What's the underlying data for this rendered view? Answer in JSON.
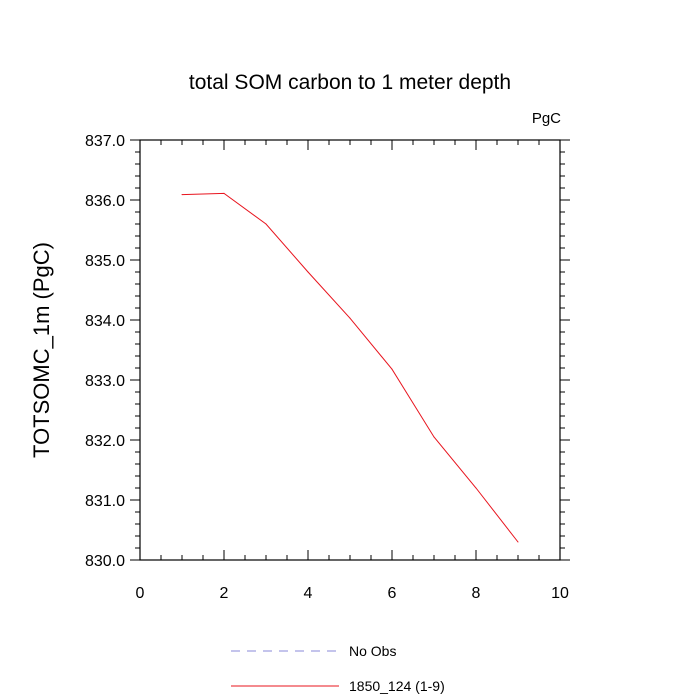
{
  "chart_data": {
    "type": "line",
    "title": "total SOM carbon to 1 meter depth",
    "units": "PgC",
    "ylabel": "TOTSOMC_1m  (PgC)",
    "xlabel": "",
    "xlim": [
      0,
      10
    ],
    "ylim": [
      830.0,
      837.0
    ],
    "x_ticks": [
      0,
      2,
      4,
      6,
      8,
      10
    ],
    "x_tick_labels": [
      "0",
      "2",
      "4",
      "6",
      "8",
      "10"
    ],
    "y_ticks": [
      830.0,
      831.0,
      832.0,
      833.0,
      834.0,
      835.0,
      836.0,
      837.0
    ],
    "y_tick_labels": [
      "830.0",
      "831.0",
      "832.0",
      "833.0",
      "834.0",
      "835.0",
      "836.0",
      "837.0"
    ],
    "grid": false,
    "legend_position": "bottom",
    "series": [
      {
        "name": "No Obs",
        "color": "#8a8ad8",
        "dash": "dashed",
        "x": [],
        "y": []
      },
      {
        "name": "1850_124 (1-9)",
        "color": "#e8141e",
        "dash": "solid",
        "x": [
          1,
          2,
          3,
          4,
          5,
          6,
          7,
          8,
          9
        ],
        "y": [
          836.09,
          836.11,
          835.6,
          834.8,
          834.03,
          833.18,
          832.05,
          831.2,
          830.3
        ]
      }
    ]
  }
}
